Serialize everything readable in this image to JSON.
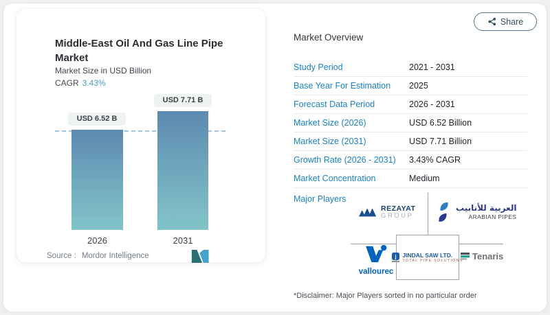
{
  "share": {
    "label": "Share"
  },
  "left_panel": {
    "title": "Middle-East Oil And Gas Line Pipe Market",
    "subtitle": "Market Size in USD Billion",
    "cagr_label": "CAGR",
    "cagr_value": "3.43%",
    "source_label": "Source :",
    "source_value": "Mordor Intelligence"
  },
  "chart_data": {
    "type": "bar",
    "title": "Middle-East Oil And Gas Line Pipe Market",
    "ylabel": "Market Size in USD Billion",
    "categories": [
      "2026",
      "2031"
    ],
    "values": [
      6.52,
      7.71
    ],
    "value_labels": [
      "USD 6.52 B",
      "USD 7.71 B"
    ],
    "cagr": "3.43%",
    "dashed_reference_line_at": 6.52,
    "grid": "off",
    "bar_gradient_top": "#5d8ab0",
    "bar_gradient_bottom": "#82c4c9"
  },
  "overview": {
    "title": "Market Overview",
    "rows": [
      {
        "label": "Study Period",
        "value": "2021 - 2031"
      },
      {
        "label": "Base Year For Estimation",
        "value": "2025"
      },
      {
        "label": "Forecast Data Period",
        "value": "2026 - 2031"
      },
      {
        "label": "Market Size (2026)",
        "value": "USD 6.52 Billion"
      },
      {
        "label": "Market Size (2031)",
        "value": "USD 7.71 Billion"
      },
      {
        "label": "Growth Rate (2026 - 2031)",
        "value": "3.43% CAGR"
      },
      {
        "label": "Market Concentration",
        "value": "Medium"
      }
    ],
    "major_players_label": "Major Players",
    "disclaimer": "*Disclaimer: Major Players sorted in no particular order"
  },
  "logos": {
    "rezayat": {
      "line1": "REZAYAT",
      "line2": "GROUP"
    },
    "arabian_pipes": {
      "arabic": "العربية للأنابيب",
      "latin": "ARABIAN PIPES"
    },
    "vallourec": {
      "text": "vallourec"
    },
    "jindal": {
      "line1": "JINDAL SAW LTD.",
      "line2": "TOTAL PIPE SOLUTIONS"
    },
    "tenaris": {
      "text": "Tenaris"
    }
  },
  "icons": {
    "share": "share-nodes-icon",
    "mordor": "mordor-intelligence-m-logo"
  },
  "colors": {
    "accent_blue": "#1a82c4",
    "cagr_teal": "#4aa0c6",
    "bar_top": "#5d8ab0",
    "bar_bottom": "#82c4c9",
    "share_border": "#527688",
    "pill_bg": "#eff3f0",
    "connector_gray": "#a3a3a3"
  }
}
